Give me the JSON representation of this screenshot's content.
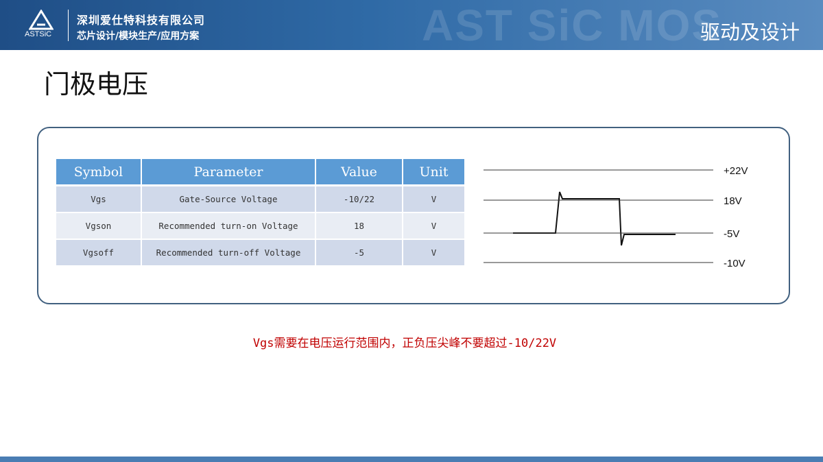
{
  "header": {
    "logo_text": "ASTSiC",
    "company_line1": "深圳爱仕特科技有限公司",
    "company_line2": "芯片设计/模块生产/应用方案",
    "watermark": "AST SiC MOS",
    "section": "驱动及设计"
  },
  "title": "门极电压",
  "table": {
    "columns": [
      "Symbol",
      "Parameter",
      "Value",
      "Unit"
    ],
    "rows": [
      [
        "Vgs",
        "Gate-Source Voltage",
        "-10/22",
        "V"
      ],
      [
        "Vgson",
        "Recommended turn-on Voltage",
        "18",
        "V"
      ],
      [
        "Vgsoff",
        "Recommended turn-off Voltage",
        "-5",
        "V"
      ]
    ]
  },
  "diagram": {
    "levels": [
      "+22V",
      "18V",
      "-5V",
      "-10V"
    ]
  },
  "note": "Vgs需要在电压运行范围内，正负压尖峰不要超过-10/22V"
}
